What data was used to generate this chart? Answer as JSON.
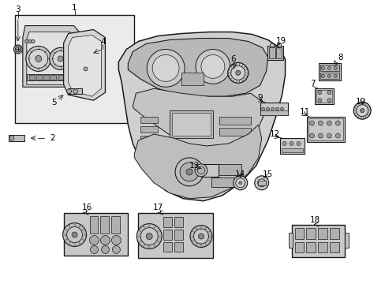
{
  "figsize": [
    4.89,
    3.6
  ],
  "dpi": 100,
  "bg": "#ffffff",
  "lc": "#1a1a1a",
  "gray_fill": "#d8d8d8",
  "gray_light": "#eeeeee",
  "gray_mid": "#bbbbbb"
}
